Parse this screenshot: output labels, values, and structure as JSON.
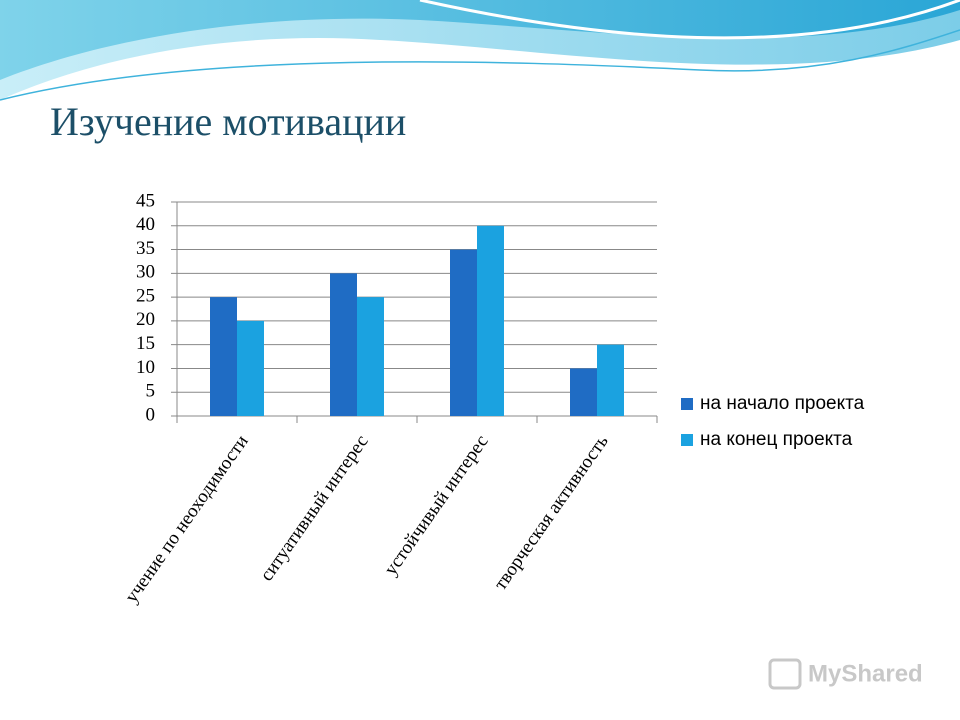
{
  "chart_data": {
    "type": "bar",
    "title": "Изучение мотивации",
    "categories": [
      "учение по неоходимости",
      "ситуативный интерес",
      "устойчивый интерес",
      "творческая активность"
    ],
    "series": [
      {
        "name": "на начало проекта",
        "color": "#1f6cc4",
        "values": [
          25,
          30,
          35,
          10
        ]
      },
      {
        "name": "на конец проекта",
        "color": "#1ba2e0",
        "values": [
          20,
          25,
          40,
          15
        ]
      }
    ],
    "ylim": [
      0,
      45
    ],
    "yticks": [
      0,
      5,
      10,
      15,
      20,
      25,
      30,
      35,
      40,
      45
    ],
    "grid": true,
    "legend": "right"
  },
  "watermark": "MyShared"
}
